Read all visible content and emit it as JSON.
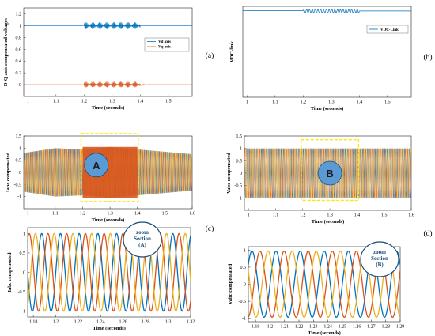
{
  "colors": {
    "blue": "#0072BD",
    "orange": "#D95319",
    "gold": "#EDB120",
    "lightblue": "#4DBEEE",
    "highlight": "#FFE600",
    "badge": "#5B9BD5",
    "badge_edge": "#1F4E79"
  },
  "chart_data": [
    {
      "id": "a",
      "type": "line",
      "panel_label": "(a)",
      "xlabel": "Time (seconds)",
      "ylabel": "D-Q axis compensated voltages",
      "xlim": [
        0.985,
        1.585
      ],
      "ylim": [
        -0.2,
        1.3
      ],
      "xticks": [
        1,
        1.1,
        1.2,
        1.3,
        1.4,
        1.5
      ],
      "xtick_labels": [
        "1",
        "1.1",
        "1.2",
        "1.3",
        "1.4",
        "1.5"
      ],
      "yticks": [
        0,
        0.2,
        0.4,
        0.6,
        0.8,
        1,
        1.2
      ],
      "ytick_labels": [
        "0",
        "0.2",
        "0.4",
        "0.6",
        "0.8",
        "1",
        "1.2"
      ],
      "legend": [
        "Vd axis",
        "Vq axis"
      ],
      "legend_position": "right",
      "series": [
        {
          "name": "Vd axis",
          "base": 1.0,
          "disturbance": [
            1.2,
            1.4
          ],
          "ripple": 0.06,
          "color": "#0072BD"
        },
        {
          "name": "Vq axis",
          "base": 0.0,
          "disturbance": [
            1.2,
            1.4
          ],
          "ripple": 0.05,
          "color": "#D95319"
        }
      ],
      "grid": false
    },
    {
      "id": "b",
      "type": "line",
      "panel_label": "(b)",
      "xlabel": "Time (seconds)",
      "ylabel": "VDC-link",
      "xlim": [
        0.985,
        1.585
      ],
      "xticks": [
        1,
        1.1,
        1.2,
        1.3,
        1.4,
        1.5
      ],
      "xtick_labels": [
        "1",
        "1.1",
        "1.2",
        "1.3",
        "1.4",
        "1.5"
      ],
      "legend": [
        "VDC-Link"
      ],
      "legend_position": "right",
      "series": [
        {
          "name": "VDC-Link",
          "base": 1.0,
          "disturbance": [
            1.2,
            1.4
          ],
          "ripple": 0.02,
          "color": "#0072BD"
        }
      ],
      "grid": false
    },
    {
      "id": "c",
      "type": "line",
      "panel_label": "(c)",
      "xlabel": "Time (seconds)",
      "ylabel": "Iabc compensated",
      "xlim": [
        0.985,
        1.6
      ],
      "ylim": [
        -1.5,
        1.5
      ],
      "xticks": [
        1,
        1.1,
        1.2,
        1.3,
        1.4,
        1.5,
        1.6
      ],
      "xtick_labels": [
        "1",
        "1.1",
        "1.2",
        "1.3",
        "1.4",
        "1.5",
        "1.6"
      ],
      "yticks": [
        -1,
        -0.5,
        0,
        0.5,
        1,
        1.5
      ],
      "ytick_labels": [
        "-1",
        "-0.5",
        "0",
        "0.5",
        "1",
        "1.5"
      ],
      "phases": [
        "a",
        "b",
        "c"
      ],
      "amplitude_profile": [
        [
          0.985,
          0.8
        ],
        [
          1.1,
          1.0
        ],
        [
          1.2,
          0.95
        ],
        [
          1.3,
          1.05
        ],
        [
          1.4,
          0.95
        ],
        [
          1.5,
          0.85
        ],
        [
          1.6,
          0.75
        ]
      ],
      "annotation": {
        "text": "A",
        "region": [
          1.2,
          1.4
        ]
      },
      "grid": false
    },
    {
      "id": "d",
      "type": "line",
      "panel_label": "(d)",
      "xlabel": "Time (seconds)",
      "ylabel": "Vabc compensated",
      "xlim": [
        0.985,
        1.6
      ],
      "ylim": [
        -1.5,
        1.5
      ],
      "xticks": [
        1,
        1.1,
        1.2,
        1.3,
        1.4,
        1.5,
        1.6
      ],
      "xtick_labels": [
        "1",
        "1.1",
        "1.2",
        "1.3",
        "1.4",
        "1.5",
        "1.6"
      ],
      "yticks": [
        -1,
        -0.5,
        0,
        0.5,
        1,
        1.5
      ],
      "ytick_labels": [
        "-1",
        "-0.5",
        "0",
        "0.5",
        "1",
        "1.5"
      ],
      "phases": [
        "a",
        "b",
        "c"
      ],
      "amplitude": 1.0,
      "annotation": {
        "text": "B",
        "region": [
          1.2,
          1.4
        ]
      },
      "grid": false
    },
    {
      "id": "e",
      "type": "line",
      "xlabel": "Time (seconds)",
      "ylabel": "Iabc compensated",
      "xlim": [
        1.175,
        1.32
      ],
      "ylim": [
        -1.15,
        1.15
      ],
      "xticks": [
        1.18,
        1.2,
        1.22,
        1.24,
        1.26,
        1.28,
        1.3,
        1.32
      ],
      "xtick_labels": [
        "1.18",
        "1.2",
        "1.22",
        "1.24",
        "1.26",
        "1.28",
        "1.3",
        "1.32"
      ],
      "yticks": [
        -1,
        -0.5,
        0,
        0.5,
        1
      ],
      "ytick_labels": [
        "-1",
        "-0.5",
        "0",
        "0.5",
        "1"
      ],
      "phases": [
        "a",
        "b",
        "c"
      ],
      "amplitude": 1.0,
      "annotation": {
        "lines": [
          "zoom",
          "Section",
          "(A)"
        ]
      },
      "grid": false
    },
    {
      "id": "f",
      "type": "line",
      "xlabel": "Time (seconds)",
      "ylabel": "Vabc compensated",
      "xlim": [
        1.185,
        1.29
      ],
      "ylim": [
        -1.1,
        1.1
      ],
      "xticks": [
        1.19,
        1.2,
        1.21,
        1.22,
        1.23,
        1.24,
        1.25,
        1.26,
        1.27,
        1.28,
        1.29
      ],
      "xtick_labels": [
        "1.19",
        "1.2",
        "1.21",
        "1.22",
        "1.23",
        "1.24",
        "1.25",
        "1.26",
        "1.27",
        "1.28",
        "1.29"
      ],
      "yticks": [
        -1,
        -0.5,
        0,
        0.5,
        1
      ],
      "ytick_labels": [
        "-1",
        "-0.5",
        "0",
        "0.5",
        "1"
      ],
      "phases": [
        "a",
        "b",
        "c"
      ],
      "amplitude": 0.97,
      "annotation": {
        "lines": [
          "zoom",
          "Section",
          "(B)"
        ]
      },
      "grid": false
    }
  ]
}
